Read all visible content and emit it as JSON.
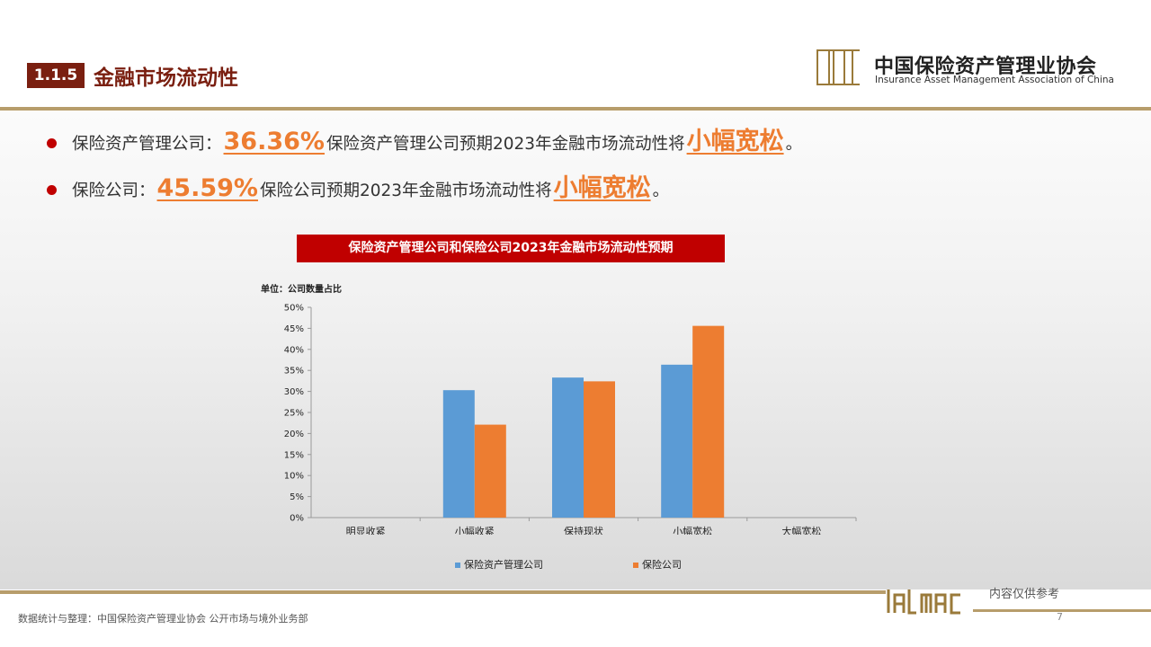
{
  "header": {
    "section_number": "1.1.5",
    "section_title": "金融市场流动性",
    "org_name_cn": "中国保险资产管理业协会",
    "org_name_en": "Insurance Asset Management Association of China"
  },
  "bullets": [
    {
      "lead": "保险资产管理公司：",
      "value": "36.36%",
      "text": "保险资产管理公司预期2023年金融市场流动性将",
      "highlight": "小幅宽松",
      "end": "。"
    },
    {
      "lead": "保险公司：",
      "value": "45.59%",
      "text": "保险公司预期2023年金融市场流动性将",
      "highlight": "小幅宽松",
      "end": "。"
    }
  ],
  "chart_data": {
    "type": "bar",
    "title": "保险资产管理公司和保险公司2023年金融市场流动性预期",
    "unit_label": "单位：公司数量占比",
    "categories": [
      "明显收紧",
      "小幅收紧",
      "保持现状",
      "小幅宽松",
      "大幅宽松"
    ],
    "series": [
      {
        "name": "保险资产管理公司",
        "color": "#5b9bd5",
        "values": [
          0,
          30.3,
          33.3,
          36.36,
          0
        ]
      },
      {
        "name": "保险公司",
        "color": "#ed7d31",
        "values": [
          0,
          22.1,
          32.4,
          45.59,
          0
        ]
      }
    ],
    "ylim": [
      0,
      50
    ],
    "yticks": [
      "0%",
      "5%",
      "10%",
      "15%",
      "20%",
      "25%",
      "30%",
      "35%",
      "40%",
      "45%",
      "50%"
    ],
    "grid": false,
    "legend_position": "bottom"
  },
  "footer": {
    "source": "数据统计与整理：中国保险资产管理业协会 公开市场与境外业务部",
    "note": "内容仅供参考",
    "page": "7"
  },
  "colors": {
    "accent_red": "#c00000",
    "brown": "#7a1f10",
    "gold_line": "#b79d6b",
    "highlight_orange": "#ed7d31"
  }
}
